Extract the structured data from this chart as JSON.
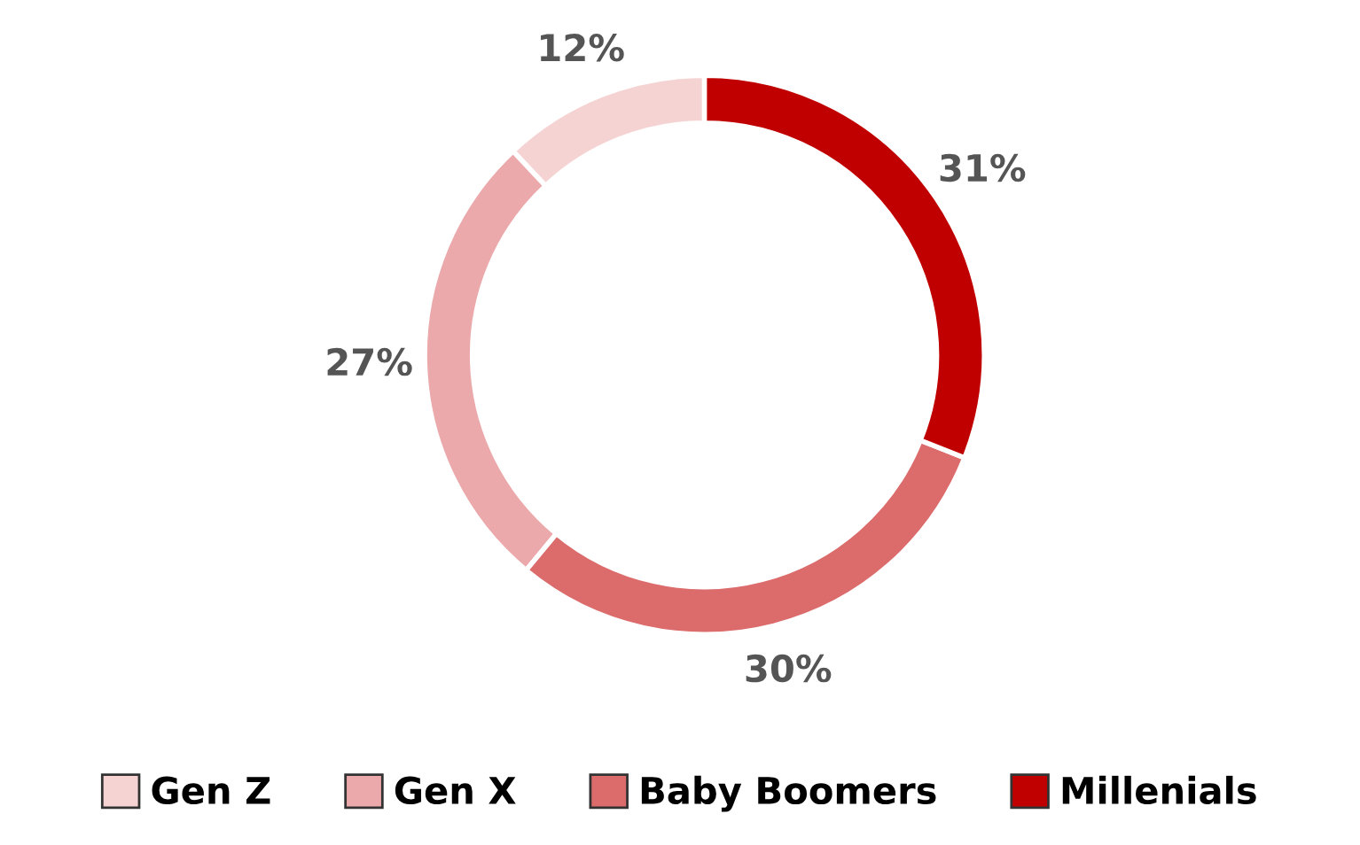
{
  "chart_data": {
    "type": "donut",
    "categories": [
      "Gen Z",
      "Gen X",
      "Baby Boomers",
      "Millenials"
    ],
    "values": [
      12,
      27,
      30,
      31
    ],
    "colors": [
      "#f6d3d3",
      "#eca9ab",
      "#dc6b6b",
      "#c00000"
    ],
    "value_labels": [
      "12%",
      "27%",
      "30%",
      "31%"
    ],
    "legend": "bottom"
  }
}
